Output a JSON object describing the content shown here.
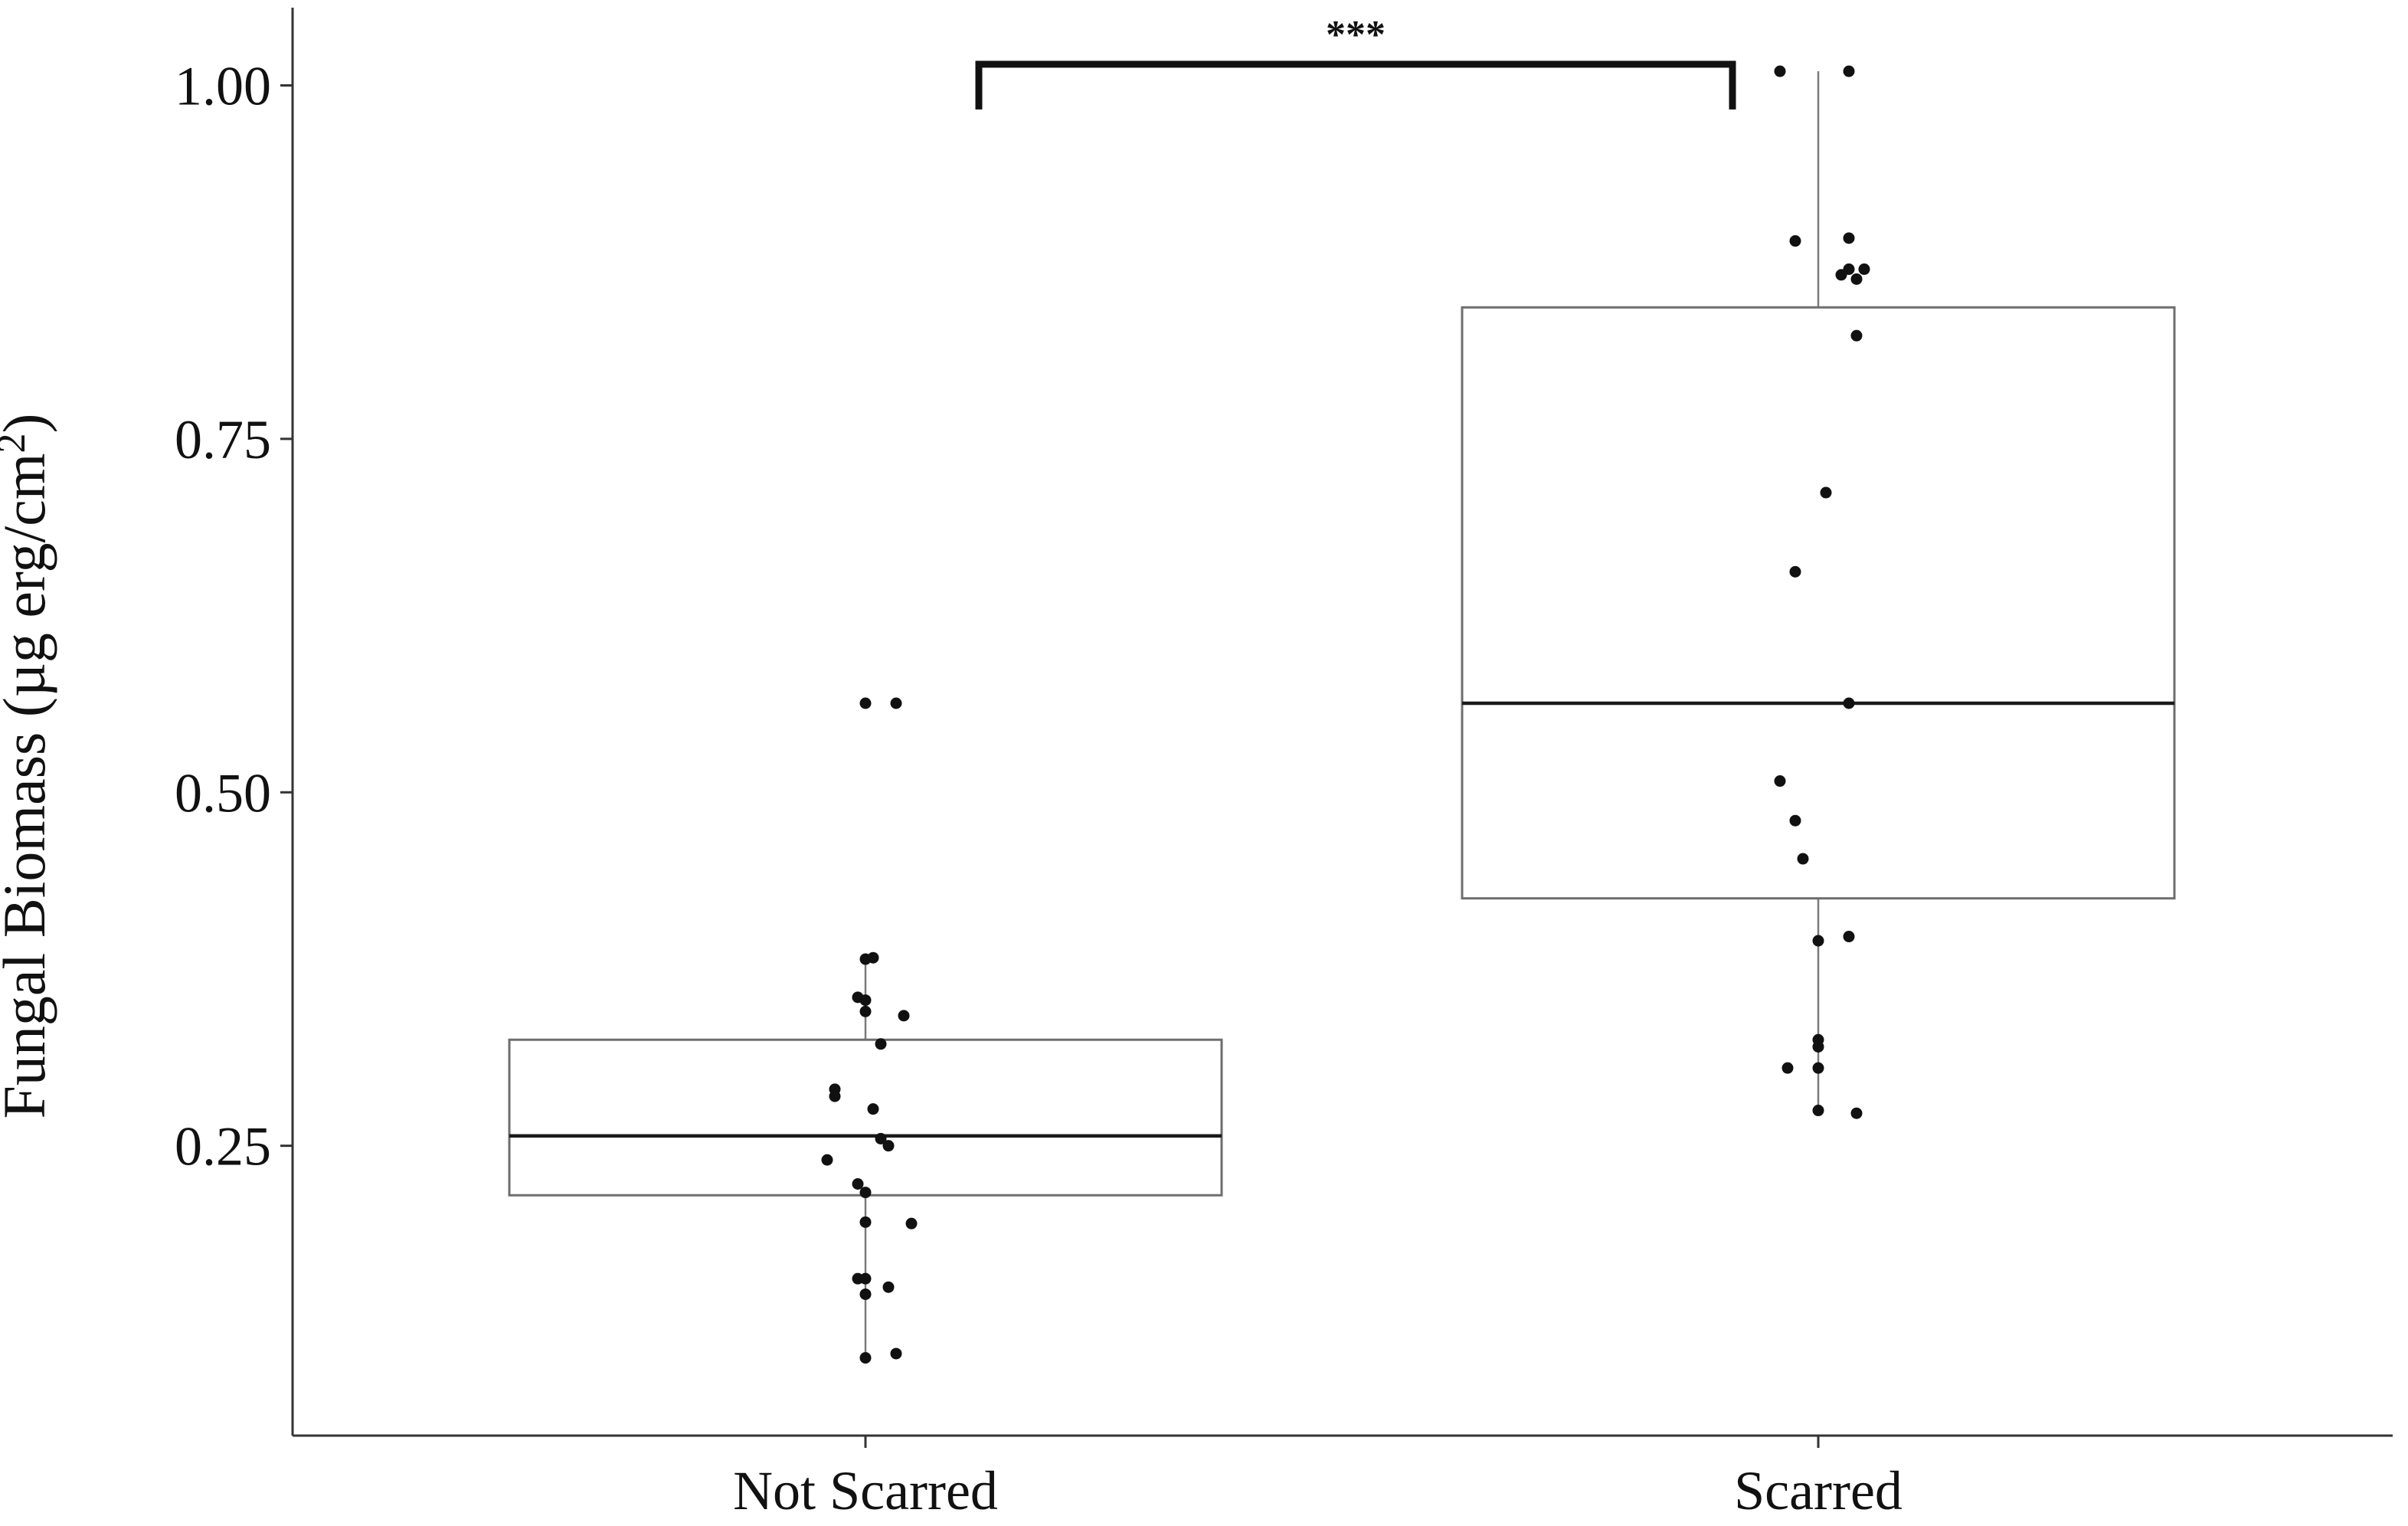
{
  "chart_data": {
    "type": "box",
    "ylabel": "Fungal Biomass (µg erg/cm²)",
    "ylabel_main": "Fungal Biomass (µg erg/cm",
    "ylabel_sup": "2",
    "ylabel_close": ")",
    "xlabel": "",
    "ylim": [
      0.045,
      1.055
    ],
    "y_ticks": [
      0.25,
      0.5,
      0.75,
      1.0
    ],
    "y_tick_labels": [
      "0.25",
      "0.50",
      "0.75",
      "1.00"
    ],
    "categories": [
      "Not Scarred",
      "Scarred"
    ],
    "grid": false,
    "legend": "none",
    "colors": {
      "box_stroke": "#6e6e6e",
      "median": "#1a1a1a",
      "whisker": "#7a7a7a",
      "point": "#111111",
      "axis": "#333333",
      "bracket": "#111111"
    },
    "boxes": [
      {
        "category": "Not Scarred",
        "whisker_low": 0.1,
        "q1": 0.215,
        "median": 0.257,
        "q3": 0.325,
        "whisker_high": 0.385,
        "points": [
          {
            "x": 0.0,
            "y": 0.563
          },
          {
            "x": 0.04,
            "y": 0.563
          },
          {
            "x": 0.01,
            "y": 0.383
          },
          {
            "x": 0.0,
            "y": 0.382
          },
          {
            "x": -0.01,
            "y": 0.355
          },
          {
            "x": 0.0,
            "y": 0.353
          },
          {
            "x": 0.0,
            "y": 0.345
          },
          {
            "x": 0.05,
            "y": 0.342
          },
          {
            "x": 0.02,
            "y": 0.322
          },
          {
            "x": -0.04,
            "y": 0.29
          },
          {
            "x": -0.04,
            "y": 0.285
          },
          {
            "x": 0.01,
            "y": 0.276
          },
          {
            "x": 0.02,
            "y": 0.255
          },
          {
            "x": 0.03,
            "y": 0.25
          },
          {
            "x": -0.05,
            "y": 0.24
          },
          {
            "x": -0.01,
            "y": 0.223
          },
          {
            "x": 0.0,
            "y": 0.217
          },
          {
            "x": 0.0,
            "y": 0.196
          },
          {
            "x": 0.06,
            "y": 0.195
          },
          {
            "x": -0.01,
            "y": 0.156
          },
          {
            "x": 0.0,
            "y": 0.156
          },
          {
            "x": 0.03,
            "y": 0.15
          },
          {
            "x": 0.0,
            "y": 0.145
          },
          {
            "x": 0.0,
            "y": 0.1
          },
          {
            "x": 0.04,
            "y": 0.103
          }
        ]
      },
      {
        "category": "Scarred",
        "whisker_low": 0.275,
        "q1": 0.425,
        "median": 0.563,
        "q3": 0.843,
        "whisker_high": 1.01,
        "points": [
          {
            "x": -0.05,
            "y": 1.01
          },
          {
            "x": 0.04,
            "y": 1.01
          },
          {
            "x": -0.03,
            "y": 0.89
          },
          {
            "x": 0.04,
            "y": 0.892
          },
          {
            "x": 0.04,
            "y": 0.87
          },
          {
            "x": 0.03,
            "y": 0.866
          },
          {
            "x": 0.05,
            "y": 0.863
          },
          {
            "x": 0.06,
            "y": 0.87
          },
          {
            "x": 0.05,
            "y": 0.823
          },
          {
            "x": 0.01,
            "y": 0.712
          },
          {
            "x": -0.03,
            "y": 0.656
          },
          {
            "x": 0.04,
            "y": 0.563
          },
          {
            "x": -0.05,
            "y": 0.508
          },
          {
            "x": -0.03,
            "y": 0.48
          },
          {
            "x": -0.02,
            "y": 0.453
          },
          {
            "x": 0.04,
            "y": 0.398
          },
          {
            "x": 0.0,
            "y": 0.395
          },
          {
            "x": 0.0,
            "y": 0.325
          },
          {
            "x": 0.0,
            "y": 0.32
          },
          {
            "x": -0.04,
            "y": 0.305
          },
          {
            "x": 0.0,
            "y": 0.305
          },
          {
            "x": 0.0,
            "y": 0.275
          },
          {
            "x": 0.05,
            "y": 0.273
          }
        ]
      }
    ],
    "significance": {
      "label": "***",
      "between": [
        "Not Scarred",
        "Scarred"
      ],
      "y": 1.015,
      "tip_y": 0.983,
      "x_start": -0.13,
      "x_end": -0.1
    }
  }
}
